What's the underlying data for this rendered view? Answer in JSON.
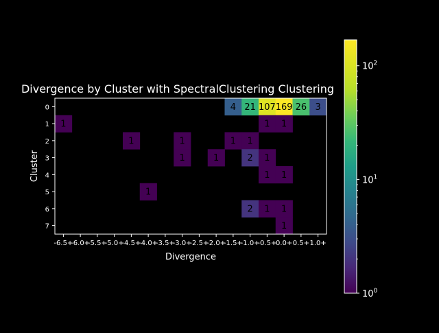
{
  "chart_data": {
    "type": "heatmap",
    "title": "Divergence by Cluster with SpectralClustering Clustering",
    "xlabel": "Divergence",
    "ylabel": "Cluster",
    "x_categories": [
      "-6.5+",
      "-6.0+",
      "-5.5+",
      "-5.0+",
      "-4.5+",
      "-4.0+",
      "-3.5+",
      "-3.0+",
      "-2.5+",
      "-2.0+",
      "-1.5+",
      "-1.0+",
      "-0.5+",
      "0.0+",
      "0.5+",
      "1.0+"
    ],
    "y_categories": [
      "0",
      "1",
      "2",
      "3",
      "4",
      "5",
      "6",
      "7"
    ],
    "cells": [
      {
        "cluster": "0",
        "x": "-1.5+",
        "value": 4
      },
      {
        "cluster": "0",
        "x": "-1.0+",
        "value": 21
      },
      {
        "cluster": "0",
        "x": "-0.5+",
        "value": 107
      },
      {
        "cluster": "0",
        "x": "0.0+",
        "value": 169
      },
      {
        "cluster": "0",
        "x": "0.5+",
        "value": 26
      },
      {
        "cluster": "0",
        "x": "1.0+",
        "value": 3
      },
      {
        "cluster": "1",
        "x": "-6.5+",
        "value": 1
      },
      {
        "cluster": "1",
        "x": "-0.5+",
        "value": 1
      },
      {
        "cluster": "1",
        "x": "0.0+",
        "value": 1
      },
      {
        "cluster": "2",
        "x": "-4.5+",
        "value": 1
      },
      {
        "cluster": "2",
        "x": "-3.0+",
        "value": 1
      },
      {
        "cluster": "2",
        "x": "-1.5+",
        "value": 1
      },
      {
        "cluster": "2",
        "x": "-1.0+",
        "value": 1
      },
      {
        "cluster": "3",
        "x": "-3.0+",
        "value": 1
      },
      {
        "cluster": "3",
        "x": "-2.0+",
        "value": 1
      },
      {
        "cluster": "3",
        "x": "-1.0+",
        "value": 2
      },
      {
        "cluster": "3",
        "x": "-0.5+",
        "value": 1
      },
      {
        "cluster": "4",
        "x": "-0.5+",
        "value": 1
      },
      {
        "cluster": "4",
        "x": "0.0+",
        "value": 1
      },
      {
        "cluster": "5",
        "x": "-4.0+",
        "value": 1
      },
      {
        "cluster": "6",
        "x": "-1.0+",
        "value": 2
      },
      {
        "cluster": "6",
        "x": "-0.5+",
        "value": 1
      },
      {
        "cluster": "6",
        "x": "0.0+",
        "value": 1
      },
      {
        "cluster": "7",
        "x": "0.0+",
        "value": 1
      }
    ],
    "colorscale": "viridis",
    "color_scale_type": "log",
    "color_range": [
      1,
      169
    ],
    "colorbar_ticks": [
      {
        "value": 1,
        "base": "10",
        "exponent": "0"
      },
      {
        "value": 10,
        "base": "10",
        "exponent": "1"
      },
      {
        "value": 100,
        "base": "10",
        "exponent": "2"
      }
    ],
    "empty_cell_color": "#000000",
    "background": "#000000",
    "text_color": "#ffffff",
    "cell_label_color": "#000000"
  }
}
